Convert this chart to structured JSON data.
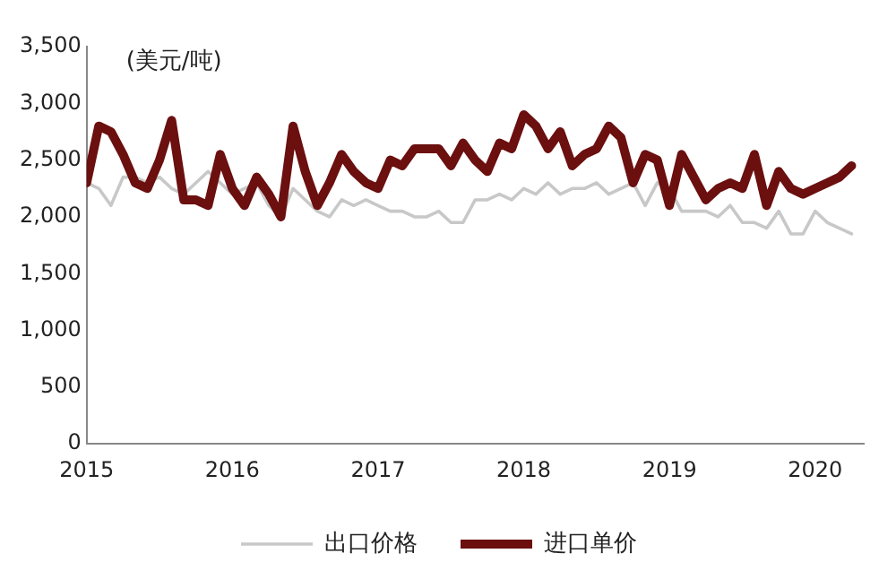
{
  "chart_data": {
    "type": "line",
    "x": [
      "2015-01",
      "2015-02",
      "2015-03",
      "2015-04",
      "2015-05",
      "2015-06",
      "2015-07",
      "2015-08",
      "2015-09",
      "2015-10",
      "2015-11",
      "2015-12",
      "2016-01",
      "2016-02",
      "2016-03",
      "2016-04",
      "2016-05",
      "2016-06",
      "2016-07",
      "2016-08",
      "2016-09",
      "2016-10",
      "2016-11",
      "2016-12",
      "2017-01",
      "2017-02",
      "2017-03",
      "2017-04",
      "2017-05",
      "2017-06",
      "2017-07",
      "2017-08",
      "2017-09",
      "2017-10",
      "2017-11",
      "2017-12",
      "2018-01",
      "2018-02",
      "2018-03",
      "2018-04",
      "2018-05",
      "2018-06",
      "2018-07",
      "2018-08",
      "2018-09",
      "2018-10",
      "2018-11",
      "2018-12",
      "2019-01",
      "2019-02",
      "2019-03",
      "2019-04",
      "2019-05",
      "2019-06",
      "2019-07",
      "2019-08",
      "2019-09",
      "2019-10",
      "2019-11",
      "2019-12",
      "2020-01",
      "2020-02",
      "2020-03",
      "2020-04"
    ],
    "series": [
      {
        "name": "进口单价",
        "color": "#6b0f0f",
        "values": [
          2300,
          2800,
          2750,
          2550,
          2300,
          2250,
          2500,
          2850,
          2150,
          2150,
          2100,
          2550,
          2250,
          2100,
          2350,
          2200,
          2000,
          2800,
          2400,
          2100,
          2300,
          2550,
          2400,
          2300,
          2250,
          2500,
          2450,
          2600,
          2600,
          2600,
          2450,
          2650,
          2500,
          2400,
          2650,
          2600,
          2900,
          2800,
          2600,
          2750,
          2450,
          2550,
          2600,
          2800,
          2700,
          2300,
          2550,
          2500,
          2100,
          2550,
          2350,
          2150,
          2250,
          2300,
          2250,
          2550,
          2100,
          2400,
          2250,
          2200,
          2250,
          2300,
          2350,
          2450
        ]
      },
      {
        "name": "出口价格",
        "color": "#c8c8c8",
        "values": [
          2300,
          2250,
          2100,
          2350,
          2350,
          2300,
          2350,
          2250,
          2200,
          2300,
          2400,
          2300,
          2200,
          2250,
          2300,
          2100,
          2000,
          2250,
          2150,
          2050,
          2000,
          2150,
          2100,
          2150,
          2100,
          2050,
          2050,
          2000,
          2000,
          2050,
          1950,
          1950,
          2150,
          2150,
          2200,
          2150,
          2250,
          2200,
          2300,
          2200,
          2250,
          2250,
          2300,
          2200,
          2250,
          2300,
          2100,
          2300,
          2250,
          2050,
          2050,
          2050,
          2000,
          2100,
          1950,
          1950,
          1900,
          2050,
          1850,
          1850,
          2050,
          1950,
          1900,
          1850
        ]
      }
    ],
    "xlim": [
      "2015-01",
      "2020-05"
    ],
    "xticks": [
      "2015",
      "2016",
      "2017",
      "2018",
      "2019",
      "2020"
    ],
    "ylim": [
      0,
      3500
    ],
    "yticks": [
      0,
      {
        "value": 500,
        "label": "500"
      },
      {
        "value": 1000,
        "label": "1,000"
      },
      {
        "value": 1500,
        "label": "1,500"
      },
      {
        "value": 2000,
        "label": "2,000"
      },
      {
        "value": 2500,
        "label": "2,500"
      },
      {
        "value": 3000,
        "label": "3,000"
      },
      {
        "value": 3500,
        "label": "3,500"
      }
    ],
    "annotations": [
      "(美元/吨)"
    ],
    "grid": false,
    "legend": "bottom",
    "marker": "none",
    "line_style": "solid"
  }
}
